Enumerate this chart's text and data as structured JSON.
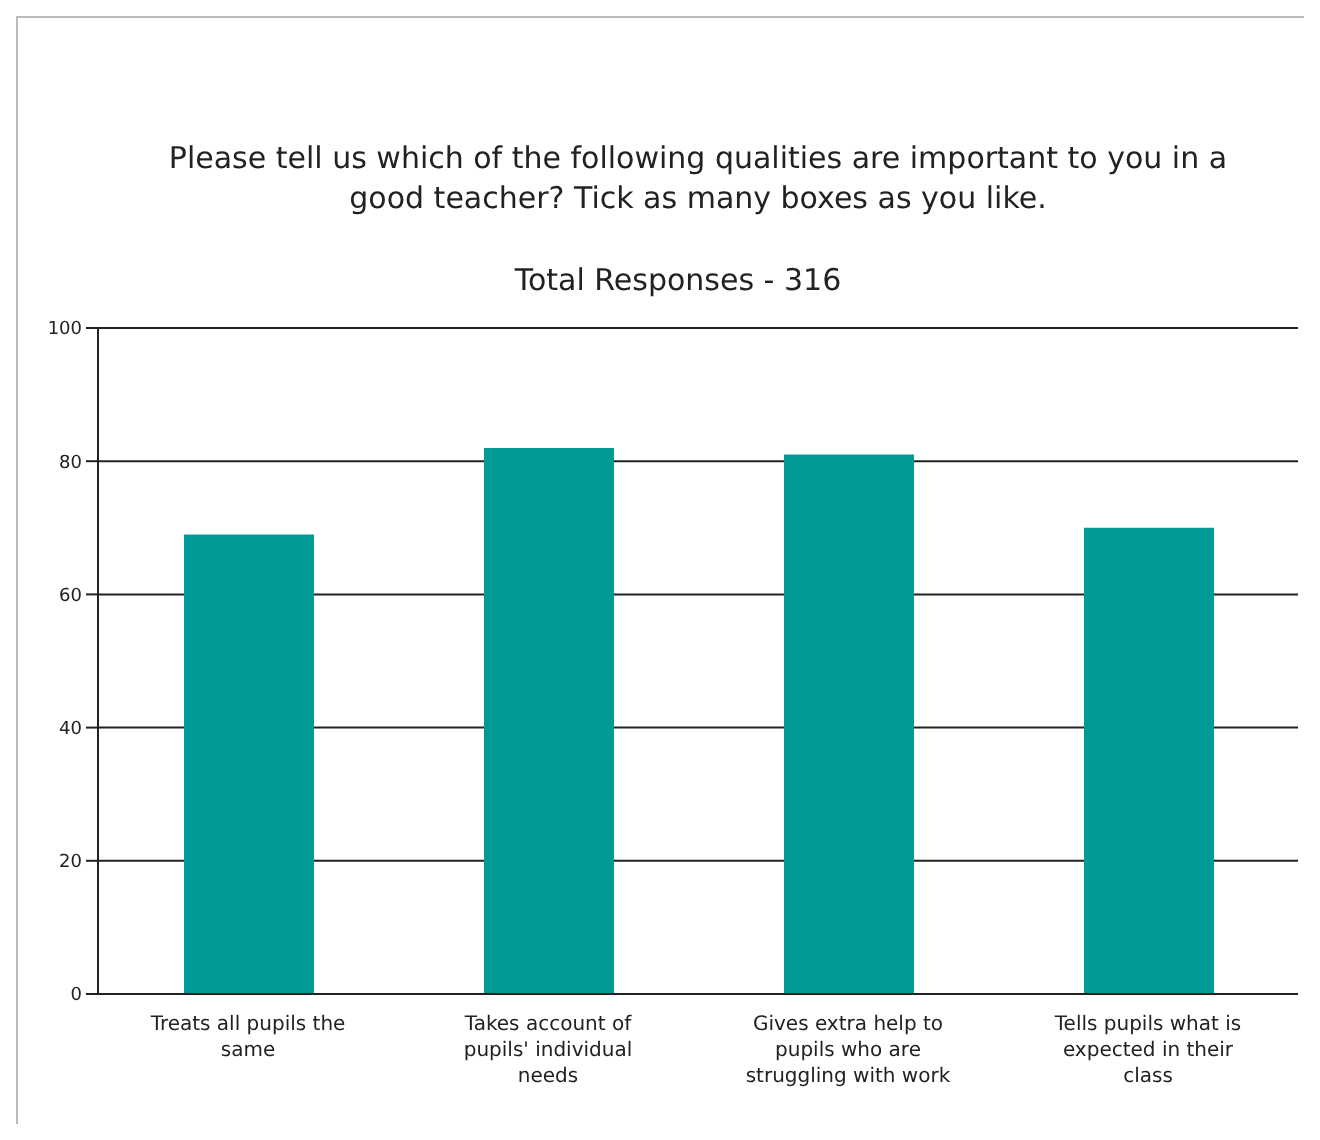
{
  "chart_data": {
    "type": "bar",
    "title": "Please tell us which of the following qualities are important to you in a good teacher? Tick as many boxes as you like.",
    "subtitle": "Total Responses - 316",
    "categories": [
      "Treats all pupils the same",
      "Takes account of pupils' individual needs",
      "Gives extra help to pupils who are struggling with work",
      "Tells pupils what is expected in their class"
    ],
    "values": [
      69,
      82,
      81,
      70
    ],
    "color": "#009b96",
    "ylim": [
      0,
      100
    ],
    "yticks": [
      0,
      20,
      40,
      60,
      80,
      100
    ],
    "grid": "y"
  }
}
